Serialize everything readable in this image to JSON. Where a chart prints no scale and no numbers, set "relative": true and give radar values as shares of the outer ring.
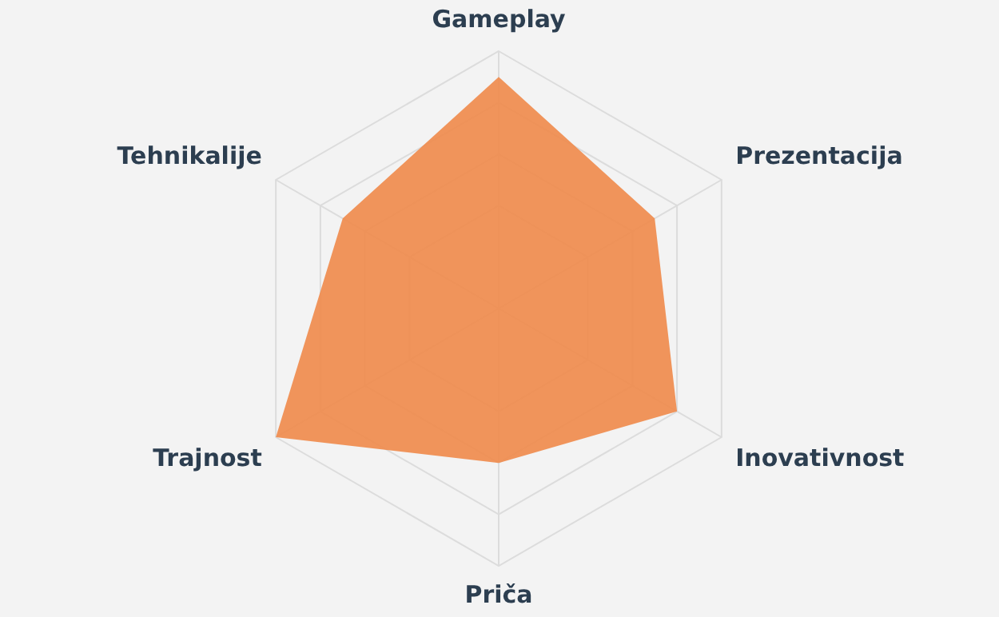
{
  "chart_data": {
    "type": "radar",
    "relative": true,
    "categories": [
      "Gameplay",
      "Prezentacija",
      "Inovativnost",
      "Priča",
      "Trajnost",
      "Tehnikalije"
    ],
    "series": [
      {
        "color": "#f0894a",
        "values": [
          0.9,
          0.7,
          0.8,
          0.6,
          1.0,
          0.7
        ]
      }
    ],
    "grid": true,
    "legend": false,
    "marker": "none"
  }
}
